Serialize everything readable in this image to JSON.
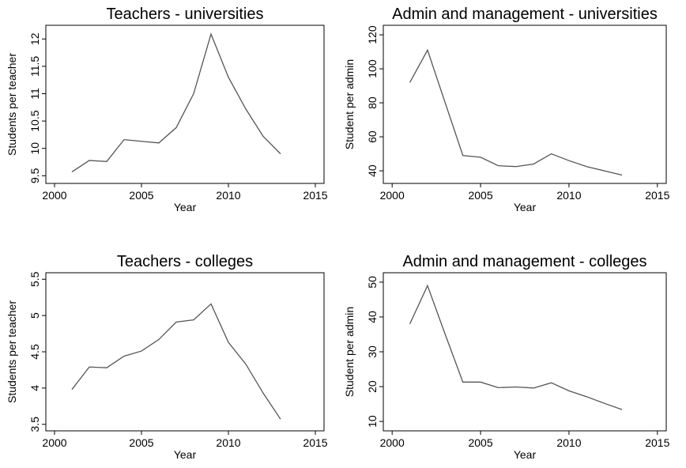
{
  "chart_data": [
    {
      "type": "line",
      "title": "Teachers - universities",
      "x_label": "Year",
      "y_label": "Students per teacher",
      "x": [
        2001,
        2002,
        2003,
        2004,
        2005,
        2006,
        2007,
        2008,
        2009,
        2010,
        2011,
        2012,
        2013
      ],
      "values": [
        9.57,
        9.78,
        9.76,
        10.16,
        10.13,
        10.1,
        10.38,
        11.0,
        12.09,
        11.3,
        10.72,
        10.22,
        9.9
      ],
      "color": "#555555",
      "xlim": [
        1999.5,
        2015.5
      ],
      "xticks": [
        2000,
        2005,
        2010,
        2015
      ],
      "ylim": [
        9.36,
        12.25
      ],
      "yticks": [
        9.5,
        10,
        10.5,
        11,
        11.5,
        12
      ]
    },
    {
      "type": "line",
      "title": "Admin and management - universities",
      "x_label": "Year",
      "y_label": "Student per admin",
      "x": [
        2001,
        2002,
        2003,
        2004,
        2005,
        2006,
        2007,
        2008,
        2009,
        2010,
        2011,
        2012,
        2013
      ],
      "values": [
        92,
        111,
        80,
        49,
        48,
        43,
        42.5,
        44,
        50,
        46,
        42.5,
        40,
        37.5
      ],
      "color": "#555555",
      "xlim": [
        1999.5,
        2015.5
      ],
      "xticks": [
        2000,
        2005,
        2010,
        2015
      ],
      "ylim": [
        32.6,
        125.6
      ],
      "yticks": [
        40,
        60,
        80,
        100,
        120
      ]
    },
    {
      "type": "line",
      "title": "Teachers - colleges",
      "x_label": "Year",
      "y_label": "Students per teacher",
      "x": [
        2001,
        2002,
        2003,
        2004,
        2005,
        2006,
        2007,
        2008,
        2009,
        2010,
        2011,
        2012,
        2013
      ],
      "values": [
        3.98,
        4.29,
        4.28,
        4.44,
        4.51,
        4.67,
        4.91,
        4.94,
        5.16,
        4.63,
        4.33,
        3.93,
        3.57
      ],
      "color": "#555555",
      "xlim": [
        1999.5,
        2015.5
      ],
      "xticks": [
        2000,
        2005,
        2010,
        2015
      ],
      "ylim": [
        3.41,
        5.59
      ],
      "yticks": [
        3.5,
        4,
        4.5,
        5,
        5.5
      ]
    },
    {
      "type": "line",
      "title": "Admin and management - colleges",
      "x_label": "Year",
      "y_label": "Student per admin",
      "x": [
        2001,
        2002,
        2003,
        2004,
        2005,
        2006,
        2007,
        2008,
        2009,
        2010,
        2011,
        2012,
        2013
      ],
      "values": [
        38,
        49,
        35,
        21.3,
        21.3,
        19.7,
        19.9,
        19.6,
        21.1,
        18.8,
        17.1,
        15.2,
        13.4
      ],
      "color": "#555555",
      "xlim": [
        1999.5,
        2015.5
      ],
      "xticks": [
        2000,
        2005,
        2010,
        2015
      ],
      "ylim": [
        7.3,
        52.7
      ],
      "yticks": [
        10,
        20,
        30,
        40,
        50
      ]
    }
  ]
}
